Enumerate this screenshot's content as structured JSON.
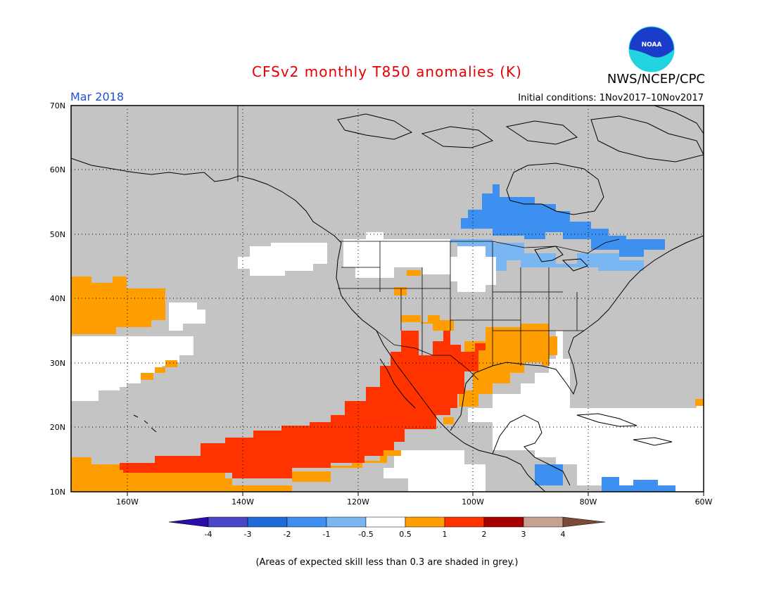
{
  "title": "CFSv2 monthly T850 anomalies (K)",
  "agency": "NWS/NCEP/CPC",
  "logo_text": "NOAA",
  "period": "Mar 2018",
  "initial_conditions": "Initial conditions: 1Nov2017–10Nov2017",
  "note": "(Areas of expected skill less than 0.3 are shaded in grey.)",
  "colors": {
    "grey_low_skill": "#c4c4c4",
    "ocean_white": "#ffffff",
    "neg_4": "#2a0ca8",
    "neg_3": "#4a46c8",
    "neg_2": "#1e6ad8",
    "neg_1": "#3d8ff0",
    "neg_05": "#79b6f2",
    "neutral": "#ffffff",
    "pos_05": "#ff9e00",
    "pos_1": "#ff3300",
    "pos_2": "#a80000",
    "pos_3": "#c8a090",
    "pos_4": "#7a4a3a",
    "title_red": "#e60000",
    "period_blue": "#1f4fd8"
  },
  "map": {
    "lat_labels": [
      "70N",
      "60N",
      "50N",
      "40N",
      "30N",
      "20N",
      "10N"
    ],
    "lon_labels": [
      "160W",
      "140W",
      "120W",
      "100W",
      "80W",
      "60W"
    ]
  },
  "colorbar": {
    "labels": [
      "-4",
      "-3",
      "-2",
      "-1",
      "-0.5",
      "0.5",
      "1",
      "2",
      "3",
      "4"
    ]
  }
}
